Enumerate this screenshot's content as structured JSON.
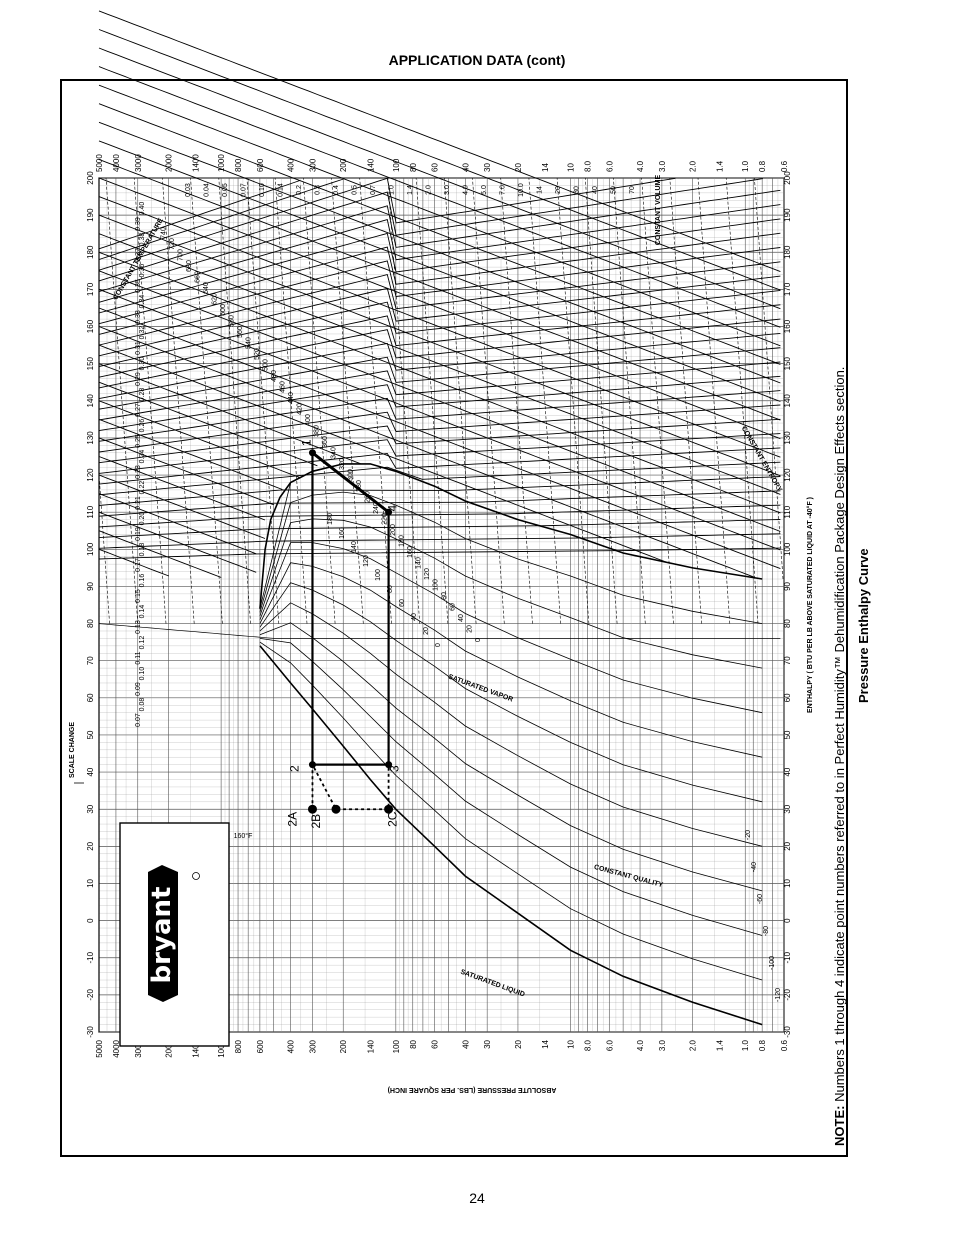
{
  "page": {
    "header": "APPLICATION DATA (cont)",
    "page_number": "24",
    "note_bold": "NOTE:",
    "note_text": "Numbers 1 through 4 indicate point numbers referred to in Perfect Humidity™ Dehumidification Package Design Effects section.",
    "caption": "Pressure Enthalpy Curve"
  },
  "colors": {
    "ink": "#000000",
    "grid": "#9a9a9a",
    "paper": "#ffffff"
  },
  "chart_data": {
    "type": "line",
    "title": "",
    "xlabel": "ENTHALPY ( BTU PER LB ABOVE SATURATED LIQUID AT -40°F )",
    "ylabel": "ABSOLUTE PRESSURE (LBS. PER SQUARE INCH)",
    "xlim": [
      -30,
      200
    ],
    "ylim": [
      0.6,
      5000
    ],
    "y_scale": "log",
    "grid": true,
    "x_ticks": [
      -30,
      -20,
      -10,
      0,
      10,
      20,
      30,
      40,
      50,
      60,
      70,
      80,
      90,
      100,
      110,
      120,
      130,
      140,
      150,
      160,
      170,
      180,
      190,
      200
    ],
    "y_ticks": [
      5000,
      4000,
      3000,
      2000,
      1400,
      1000,
      800,
      600,
      400,
      300,
      200,
      140,
      100,
      80,
      60,
      40,
      30,
      20,
      14,
      10,
      8.0,
      6.0,
      4.0,
      3.0,
      2.0,
      1.4,
      1.0,
      0.8,
      0.6
    ],
    "y_tick_labels": [
      "5000",
      "4000",
      "3000",
      "2000",
      "1400",
      "1000",
      "800",
      "600",
      "400",
      "300",
      "200",
      "140",
      "100",
      "80",
      "60",
      "40",
      "30",
      "20",
      "14",
      "10",
      "8.0",
      "6.0",
      "4.0",
      "3.0",
      "2.0",
      "1.4",
      "1.0",
      "0.8",
      "0.6"
    ],
    "scale_change_label": "SCALE CHANGE",
    "curve_labels": {
      "saturated_liquid": "SATURATED LIQUID",
      "saturated_vapor": "SATURATED VAPOR",
      "constant_quality": "CONSTANT QUALITY",
      "constant_temperature": "CONSTANT TEMPERATURE",
      "constant_volume": "CONSTANT VOLUME",
      "constant_entropy": "CONSTANT ENTROPY"
    },
    "temperature_labels": [
      "-120",
      "-100",
      "-80",
      "-60",
      "-40",
      "-20",
      "0",
      "20",
      "40",
      "60",
      "80",
      "100",
      "120",
      "140",
      "160",
      "180",
      "200",
      "220",
      "240",
      "260",
      "280",
      "300",
      "320",
      "340",
      "360",
      "380",
      "400",
      "420",
      "440",
      "460",
      "480",
      "500",
      "520",
      "540",
      "560",
      "580",
      "600",
      "620",
      "640",
      "660",
      "680",
      "700",
      "720",
      "740"
    ],
    "volume_labels": [
      "0.03",
      "0.04",
      "0.05",
      "0.07",
      "0.10",
      "0.14",
      "0.2",
      "0.3",
      "0.4",
      "0.5",
      "0.7",
      "1.0",
      "1.4",
      "2.0",
      "3.0",
      "4.0",
      "5.0",
      "7.0",
      "10.0",
      "14",
      "20",
      "30",
      "40",
      "50",
      "70"
    ],
    "entropy_labels": [
      "0.07",
      "0.08",
      "0.09",
      "0.10",
      "0.11",
      "0.12",
      "0.13",
      "0.14",
      "0.15",
      "0.16",
      "0.17",
      "0.18",
      "0.19",
      "0.20",
      "0.21",
      "0.22",
      "0.23",
      "0.24",
      "0.25",
      "0.26",
      "0.27",
      "0.28",
      "0.29",
      "0.30",
      "0.31",
      "0.32",
      "0.33",
      "0.34",
      "0.35",
      "0.36",
      "0.37",
      "0.38",
      "0.39",
      "0.40"
    ],
    "quality_labels": [
      "0",
      "20",
      "40",
      "60",
      "80",
      "100",
      "120",
      "140",
      "160",
      "180"
    ],
    "low_temp_label": "160°F",
    "cycle_points": [
      {
        "label": "1",
        "enthalpy": 126,
        "pressure": 300
      },
      {
        "label": "2",
        "enthalpy": 42,
        "pressure": 300
      },
      {
        "label": "3",
        "enthalpy": 42,
        "pressure": 110
      },
      {
        "label": "4",
        "enthalpy": 110,
        "pressure": 110
      },
      {
        "label": "2A",
        "enthalpy": 30,
        "pressure": 300
      },
      {
        "label": "2B",
        "enthalpy": 30,
        "pressure": 220
      },
      {
        "label": "2C",
        "enthalpy": 30,
        "pressure": 110
      }
    ],
    "logo_text": "bryant"
  }
}
